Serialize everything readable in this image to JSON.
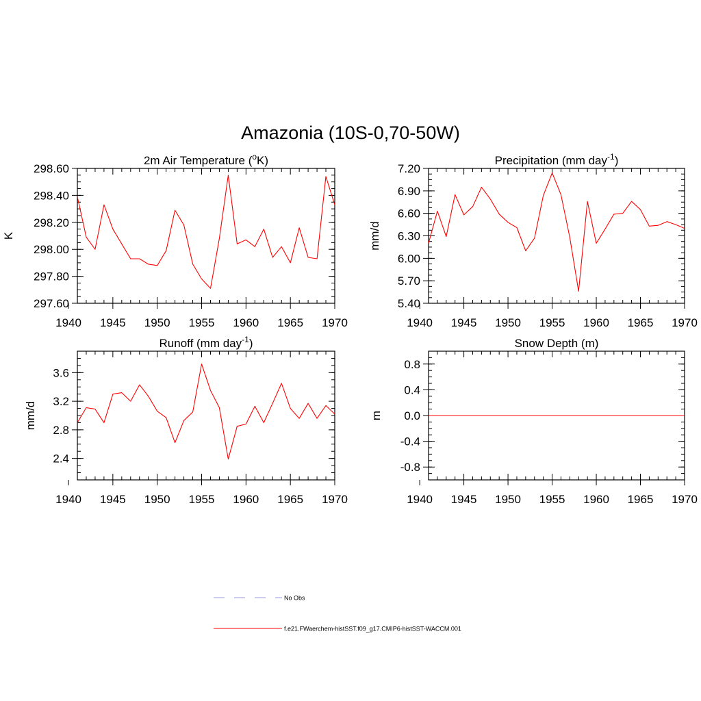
{
  "figure": {
    "title": "Amazonia (10S-0,70-50W)",
    "colors": {
      "series": "#ff0000",
      "obs": "#9999dd",
      "axes": "#000000"
    }
  },
  "chart_data": [
    {
      "type": "line",
      "title": "2m Air Temperature",
      "title_unit_prefix": "(",
      "title_unit_sup": "o",
      "title_unit_suffix": "K)",
      "ylabel": "K",
      "xlim": [
        1941,
        1970
      ],
      "ylim": [
        297.6,
        298.6
      ],
      "xticks": [
        1940,
        1945,
        1950,
        1955,
        1960,
        1965,
        1970
      ],
      "yticks": [
        297.6,
        297.8,
        298.0,
        298.2,
        298.4,
        298.6
      ],
      "ytick_labels": [
        "297.60",
        "297.80",
        "298.00",
        "298.20",
        "298.40",
        "298.60"
      ],
      "x": [
        1941,
        1942,
        1943,
        1944,
        1945,
        1946,
        1947,
        1948,
        1949,
        1950,
        1951,
        1952,
        1953,
        1954,
        1955,
        1956,
        1957,
        1958,
        1959,
        1960,
        1961,
        1962,
        1963,
        1964,
        1965,
        1966,
        1967,
        1968,
        1969,
        1970
      ],
      "series": [
        {
          "values": [
            298.39,
            298.09,
            298.0,
            298.33,
            298.15,
            298.04,
            297.93,
            297.93,
            297.89,
            297.88,
            297.99,
            298.29,
            298.18,
            297.89,
            297.78,
            297.71,
            298.08,
            298.55,
            298.04,
            298.07,
            298.02,
            298.15,
            297.94,
            298.02,
            297.9,
            298.16,
            297.94,
            297.93,
            298.54,
            298.33
          ]
        }
      ]
    },
    {
      "type": "line",
      "title": "Precipitation",
      "title_unit_prefix": "(mm day",
      "title_unit_sup": "-1",
      "title_unit_suffix": ")",
      "ylabel": "mm/d",
      "xlim": [
        1941,
        1970
      ],
      "ylim": [
        5.4,
        7.2
      ],
      "xticks": [
        1940,
        1945,
        1950,
        1955,
        1960,
        1965,
        1970
      ],
      "yticks": [
        5.4,
        5.7,
        6.0,
        6.3,
        6.6,
        6.9,
        7.2
      ],
      "ytick_labels": [
        "5.40",
        "5.70",
        "6.00",
        "6.30",
        "6.60",
        "6.90",
        "7.20"
      ],
      "x": [
        1941,
        1942,
        1943,
        1944,
        1945,
        1946,
        1947,
        1948,
        1949,
        1950,
        1951,
        1952,
        1953,
        1954,
        1955,
        1956,
        1957,
        1958,
        1959,
        1960,
        1961,
        1962,
        1963,
        1964,
        1965,
        1966,
        1967,
        1968,
        1969,
        1970
      ],
      "series": [
        {
          "values": [
            6.2,
            6.63,
            6.29,
            6.85,
            6.58,
            6.69,
            6.95,
            6.79,
            6.59,
            6.48,
            6.41,
            6.1,
            6.27,
            6.84,
            7.14,
            6.85,
            6.28,
            5.56,
            6.76,
            6.2,
            6.39,
            6.59,
            6.6,
            6.76,
            6.65,
            6.43,
            6.44,
            6.49,
            6.45,
            6.4
          ]
        }
      ]
    },
    {
      "type": "line",
      "title": "Runoff",
      "title_unit_prefix": "(mm day",
      "title_unit_sup": "-1",
      "title_unit_suffix": ")",
      "ylabel": "mm/d",
      "xlim": [
        1941,
        1970
      ],
      "ylim": [
        2.1,
        3.9
      ],
      "xticks": [
        1940,
        1945,
        1950,
        1955,
        1960,
        1965,
        1970
      ],
      "yticks": [
        2.4,
        2.8,
        3.2,
        3.6
      ],
      "ytick_labels": [
        "2.4",
        "2.8",
        "3.2",
        "3.6"
      ],
      "x": [
        1941,
        1942,
        1943,
        1944,
        1945,
        1946,
        1947,
        1948,
        1949,
        1950,
        1951,
        1952,
        1953,
        1954,
        1955,
        1956,
        1957,
        1958,
        1959,
        1960,
        1961,
        1962,
        1963,
        1964,
        1965,
        1966,
        1967,
        1968,
        1969,
        1970
      ],
      "series": [
        {
          "values": [
            2.9,
            3.11,
            3.09,
            2.9,
            3.3,
            3.32,
            3.2,
            3.43,
            3.27,
            3.06,
            2.97,
            2.62,
            2.93,
            3.05,
            3.72,
            3.35,
            3.11,
            2.39,
            2.85,
            2.88,
            3.13,
            2.9,
            3.17,
            3.45,
            3.1,
            2.96,
            3.17,
            2.96,
            3.14,
            3.02
          ]
        }
      ]
    },
    {
      "type": "line",
      "title": "Snow Depth (m)",
      "title_unit_prefix": "",
      "title_unit_sup": "",
      "title_unit_suffix": "",
      "ylabel": "m",
      "xlim": [
        1941,
        1970
      ],
      "ylim": [
        -1.0,
        1.0
      ],
      "xticks": [
        1940,
        1945,
        1950,
        1955,
        1960,
        1965,
        1970
      ],
      "yticks": [
        -0.8,
        -0.4,
        0.0,
        0.4,
        0.8
      ],
      "ytick_labels": [
        "-0.8",
        "-0.4",
        "0.0",
        "0.4",
        "0.8"
      ],
      "x": [
        1941,
        1942,
        1943,
        1944,
        1945,
        1946,
        1947,
        1948,
        1949,
        1950,
        1951,
        1952,
        1953,
        1954,
        1955,
        1956,
        1957,
        1958,
        1959,
        1960,
        1961,
        1962,
        1963,
        1964,
        1965,
        1966,
        1967,
        1968,
        1969,
        1970
      ],
      "series": [
        {
          "values": [
            0,
            0,
            0,
            0,
            0,
            0,
            0,
            0,
            0,
            0,
            0,
            0,
            0,
            0,
            0,
            0,
            0,
            0,
            0,
            0,
            0,
            0,
            0,
            0,
            0,
            0,
            0,
            0,
            0,
            0
          ]
        }
      ]
    }
  ],
  "legend": {
    "items": [
      {
        "label": "No Obs",
        "style": "dashed",
        "color": "#9999dd"
      },
      {
        "label": "f.e21.FWaerchem-histSST.f09_g17.CMIP6-histSST-WACCM.001",
        "style": "solid",
        "color": "#ff0000"
      }
    ]
  }
}
